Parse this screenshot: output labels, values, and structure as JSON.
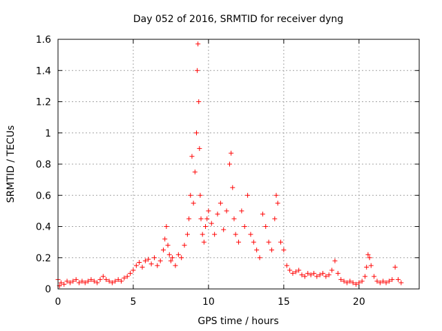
{
  "chart_data": {
    "type": "scatter",
    "title": "Day 052 of 2016, SRMTID for receiver dyng",
    "xlabel": "GPS time / hours",
    "ylabel": "SRMTID / TECUs",
    "xlim": [
      0,
      24
    ],
    "ylim": [
      0,
      1.6
    ],
    "x_ticks": [
      0,
      5,
      10,
      15,
      20
    ],
    "x_tick_labels": [
      "0",
      "5",
      "10",
      "15",
      "20"
    ],
    "y_ticks": [
      0,
      0.2,
      0.4,
      0.6,
      0.8,
      1,
      1.2,
      1.4,
      1.6
    ],
    "y_tick_labels": [
      "0",
      "0.2",
      "0.4",
      "0.6",
      "0.8",
      "1",
      "1.2",
      "1.4",
      "1.6"
    ],
    "grid": true,
    "marker": "+",
    "series": [
      {
        "name": "SRMTID",
        "color": "#ff0000",
        "x": [
          0.0,
          0.1,
          0.2,
          0.4,
          0.6,
          0.8,
          1.0,
          1.2,
          1.4,
          1.6,
          1.8,
          2.0,
          2.2,
          2.4,
          2.6,
          2.8,
          3.0,
          3.2,
          3.4,
          3.6,
          3.8,
          4.0,
          4.2,
          4.4,
          4.6,
          4.8,
          5.0,
          5.2,
          5.4,
          5.6,
          5.8,
          6.0,
          6.2,
          6.4,
          6.6,
          6.8,
          7.0,
          7.1,
          7.2,
          7.3,
          7.4,
          7.5,
          7.6,
          7.8,
          8.0,
          8.2,
          8.4,
          8.6,
          8.7,
          8.8,
          8.9,
          9.0,
          9.1,
          9.2,
          9.25,
          9.3,
          9.35,
          9.4,
          9.45,
          9.5,
          9.6,
          9.7,
          9.8,
          9.9,
          10.0,
          10.2,
          10.4,
          10.6,
          10.8,
          11.0,
          11.2,
          11.4,
          11.5,
          11.6,
          11.7,
          11.8,
          12.0,
          12.2,
          12.4,
          12.6,
          12.8,
          13.0,
          13.2,
          13.4,
          13.6,
          13.8,
          14.0,
          14.2,
          14.4,
          14.5,
          14.6,
          14.8,
          15.0,
          15.2,
          15.4,
          15.6,
          15.8,
          16.0,
          16.2,
          16.4,
          16.6,
          16.8,
          17.0,
          17.2,
          17.4,
          17.6,
          17.8,
          18.0,
          18.2,
          18.4,
          18.6,
          18.8,
          19.0,
          19.2,
          19.4,
          19.6,
          19.8,
          20.0,
          20.2,
          20.4,
          20.5,
          20.6,
          20.7,
          20.8,
          21.0,
          21.2,
          21.4,
          21.6,
          21.8,
          22.0,
          22.2,
          22.4,
          22.6,
          22.8
        ],
        "y": [
          0.06,
          0.02,
          0.04,
          0.03,
          0.05,
          0.04,
          0.05,
          0.06,
          0.04,
          0.05,
          0.04,
          0.05,
          0.06,
          0.05,
          0.04,
          0.06,
          0.08,
          0.06,
          0.05,
          0.04,
          0.05,
          0.06,
          0.05,
          0.07,
          0.08,
          0.1,
          0.12,
          0.15,
          0.17,
          0.14,
          0.18,
          0.19,
          0.16,
          0.2,
          0.15,
          0.18,
          0.25,
          0.32,
          0.4,
          0.28,
          0.22,
          0.18,
          0.2,
          0.15,
          0.22,
          0.2,
          0.28,
          0.35,
          0.45,
          0.6,
          0.85,
          0.55,
          0.75,
          1.0,
          1.4,
          1.57,
          1.2,
          0.9,
          0.6,
          0.45,
          0.35,
          0.3,
          0.4,
          0.45,
          0.5,
          0.42,
          0.35,
          0.48,
          0.55,
          0.38,
          0.5,
          0.8,
          0.87,
          0.65,
          0.45,
          0.35,
          0.3,
          0.5,
          0.4,
          0.6,
          0.35,
          0.3,
          0.25,
          0.2,
          0.48,
          0.4,
          0.3,
          0.25,
          0.45,
          0.6,
          0.55,
          0.3,
          0.25,
          0.15,
          0.12,
          0.1,
          0.11,
          0.12,
          0.09,
          0.08,
          0.1,
          0.09,
          0.1,
          0.08,
          0.09,
          0.1,
          0.08,
          0.09,
          0.12,
          0.18,
          0.1,
          0.06,
          0.05,
          0.04,
          0.05,
          0.04,
          0.03,
          0.04,
          0.05,
          0.08,
          0.14,
          0.22,
          0.2,
          0.15,
          0.08,
          0.05,
          0.04,
          0.05,
          0.04,
          0.05,
          0.06,
          0.14,
          0.06,
          0.04
        ]
      }
    ]
  }
}
